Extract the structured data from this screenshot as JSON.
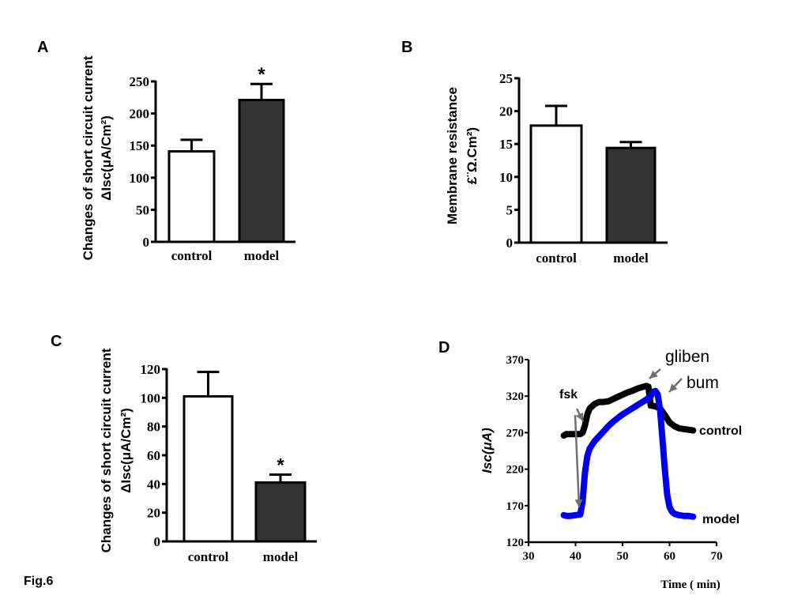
{
  "figure_label": "Fig.6",
  "chart_data": [
    {
      "panel": "A",
      "type": "bar",
      "title": "",
      "xlabel": "",
      "ylabel_line1": "Changes of short circuit  current",
      "ylabel_line2": "ΔIsc(μA/Cm²)",
      "categories": [
        "control",
        "model"
      ],
      "values": [
        141,
        221
      ],
      "errors": [
        18,
        25
      ],
      "bar_colors": [
        "#ffffff",
        "#333333"
      ],
      "significance": [
        "",
        "*"
      ],
      "ylim": [
        0,
        250
      ],
      "yticks": [
        0,
        50,
        100,
        150,
        200,
        250
      ],
      "grid": false
    },
    {
      "panel": "B",
      "type": "bar",
      "title": "",
      "xlabel": "",
      "ylabel_line1": "Membrane resistance",
      "ylabel_line2": "£¨Ω.Cm²)",
      "categories": [
        "control",
        "model"
      ],
      "values": [
        17.8,
        14.4
      ],
      "errors": [
        3.0,
        0.9
      ],
      "bar_colors": [
        "#ffffff",
        "#333333"
      ],
      "significance": [
        "",
        ""
      ],
      "ylim": [
        0,
        25
      ],
      "yticks": [
        0,
        5,
        10,
        15,
        20,
        25
      ],
      "grid": false
    },
    {
      "panel": "C",
      "type": "bar",
      "title": "",
      "xlabel": "",
      "ylabel_line1": "Changes of short circuit  current",
      "ylabel_line2": "ΔIsc(μA/Cm²)",
      "categories": [
        "control",
        "model"
      ],
      "values": [
        101,
        41
      ],
      "errors": [
        17,
        5.5
      ],
      "bar_colors": [
        "#ffffff",
        "#333333"
      ],
      "significance": [
        "",
        "*"
      ],
      "ylim": [
        0,
        120
      ],
      "yticks": [
        0,
        20,
        40,
        60,
        80,
        100,
        120
      ],
      "grid": false
    },
    {
      "panel": "D",
      "type": "line",
      "title": "",
      "xlabel": "Time ( min)",
      "ylabel": "Isc(μA)",
      "xlim": [
        30,
        70
      ],
      "ylim": [
        120,
        370
      ],
      "xticks": [
        30,
        40,
        50,
        60,
        70
      ],
      "yticks": [
        120,
        170,
        220,
        270,
        320,
        370
      ],
      "grid": false,
      "series": [
        {
          "name": "control",
          "color": "#000000",
          "x": [
            37.5,
            38,
            39,
            40,
            41,
            41.5,
            42,
            42.5,
            43,
            44,
            45,
            46,
            47,
            48,
            49,
            50,
            51,
            52,
            53,
            54,
            55,
            55.5,
            56,
            57,
            58,
            59,
            60,
            61,
            62,
            63,
            64,
            65
          ],
          "y": [
            266,
            268,
            268,
            268,
            268,
            270,
            280,
            295,
            303,
            309,
            312,
            312,
            313,
            316,
            319,
            322,
            325,
            327,
            330,
            332,
            334,
            333,
            307,
            306,
            303,
            294,
            284,
            279,
            276,
            275,
            274,
            273
          ]
        },
        {
          "name": "model",
          "color": "#0000ee",
          "x": [
            37.5,
            38,
            39,
            40,
            41,
            41.5,
            42,
            42.5,
            43,
            44,
            45,
            46,
            47,
            48,
            49,
            50,
            51,
            52,
            53,
            54,
            55,
            56,
            56.5,
            57,
            57.5,
            58,
            58.5,
            59,
            59.5,
            60,
            60.5,
            61,
            62,
            63,
            64,
            65
          ],
          "y": [
            157,
            156,
            156,
            157,
            158,
            175,
            215,
            238,
            248,
            258,
            265,
            272,
            279,
            285,
            290,
            295,
            299,
            303,
            307,
            311,
            315,
            320,
            326,
            327,
            322,
            300,
            260,
            220,
            185,
            168,
            162,
            159,
            157,
            156,
            156,
            155
          ]
        }
      ],
      "annotations": [
        {
          "text": "fsk",
          "x": 40.5,
          "y": 321
        },
        {
          "text": "gliben",
          "x": 55,
          "y": 356
        },
        {
          "text": "bum",
          "x": 59,
          "y": 333
        },
        {
          "text": "control",
          "x": 66,
          "y": 273
        },
        {
          "text": "model",
          "x": 66,
          "y": 156
        }
      ]
    }
  ]
}
